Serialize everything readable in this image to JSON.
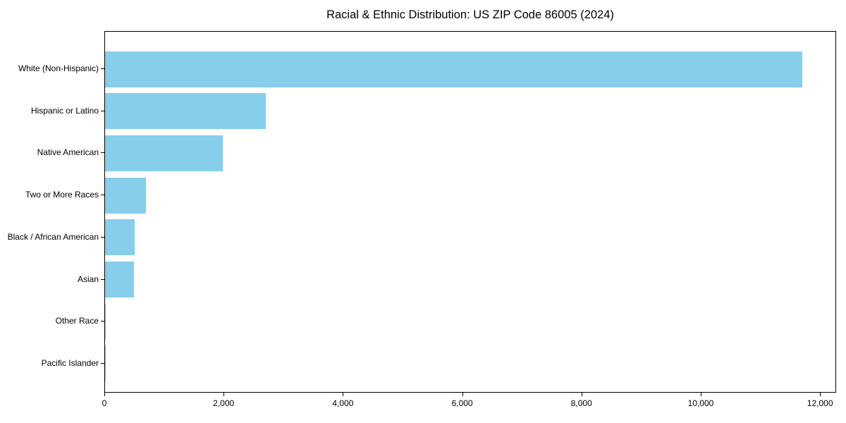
{
  "chart_data": {
    "type": "bar",
    "orientation": "horizontal",
    "title": "Racial & Ethnic Distribution: US ZIP Code 86005 (2024)",
    "categories": [
      "White (Non-Hispanic)",
      "Hispanic or Latino",
      "Native American",
      "Two or More Races",
      "Black / African American",
      "Asian",
      "Other Race",
      "Pacific Islander"
    ],
    "values": [
      11690,
      2690,
      1970,
      680,
      500,
      480,
      12,
      3
    ],
    "xlabel": "",
    "ylabel": "",
    "xlim": [
      0,
      12270
    ],
    "x_ticks": [
      0,
      2000,
      4000,
      6000,
      8000,
      10000,
      12000
    ],
    "x_tick_labels": [
      "0",
      "2,000",
      "4,000",
      "6,000",
      "8,000",
      "10,000",
      "12,000"
    ],
    "bar_color": "#87CEEB",
    "background_color": "#FFFFFF",
    "axis_color": "#000000",
    "grid": false,
    "legend": null
  }
}
